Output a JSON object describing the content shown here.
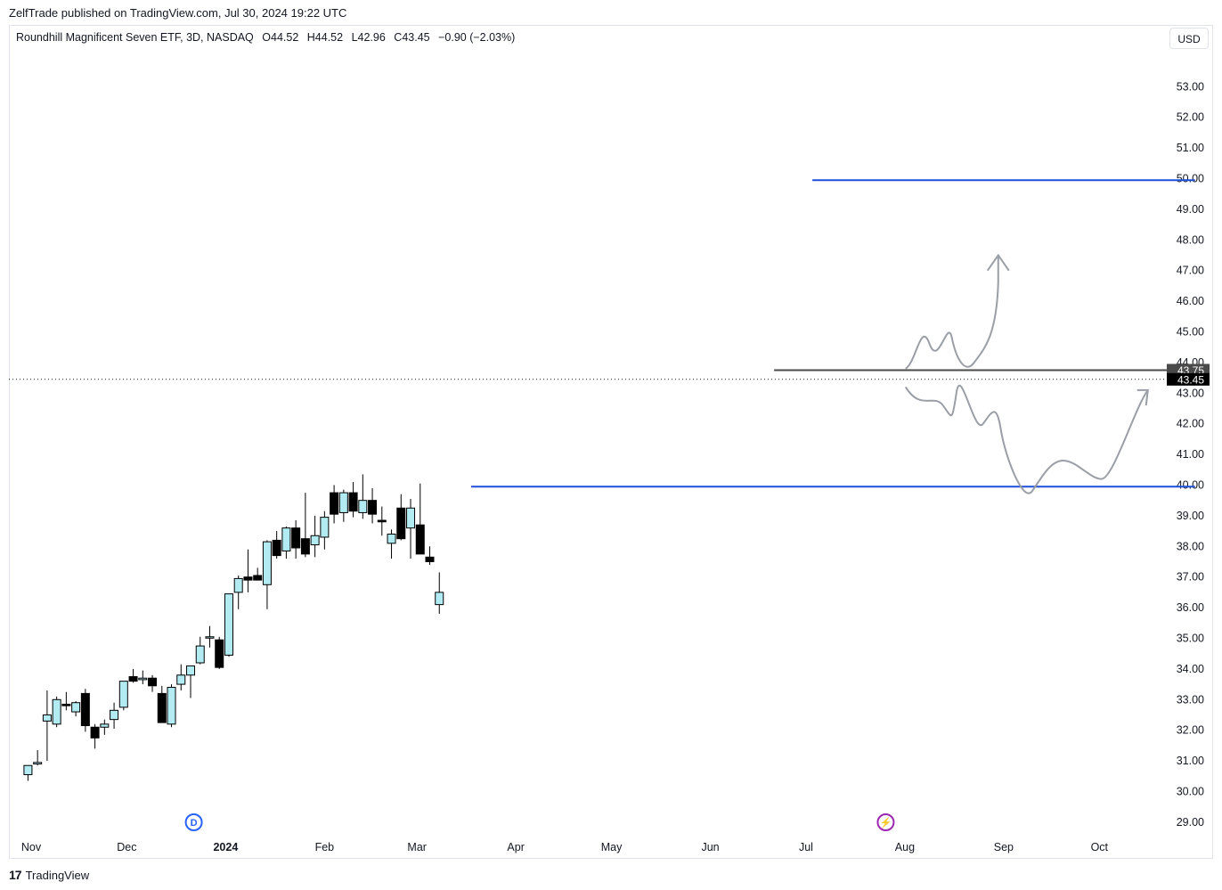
{
  "header": {
    "published_line": "ZelfTrade published on TradingView.com, Jul 30, 2024 19:22 UTC"
  },
  "legend": {
    "symbol": "Roundhill Magnificent Seven ETF, 3D, NASDAQ",
    "open": "O44.52",
    "high": "H44.52",
    "low": "L42.96",
    "close": "C43.45",
    "change": "−0.90 (−2.03%)"
  },
  "currency_button": "USD",
  "footer": {
    "brand": "TradingView",
    "logo_glyph": "17"
  },
  "colors": {
    "up_body": "#b2ebf2",
    "down_body": "#000000",
    "wick": "#000000",
    "level_line": "#1e4fd8",
    "support_line": "#4a4a4a",
    "drawing": "#9a9ea6",
    "dividend_marker": "#2962ff",
    "earnings_marker": "#9c27b0"
  },
  "chart_data": {
    "type": "candlestick",
    "title": "",
    "xlabel": "",
    "ylabel": "",
    "ylim": [
      28.6,
      54.2
    ],
    "yticks": [
      29,
      30,
      31,
      32,
      33,
      34,
      35,
      36,
      37,
      38,
      39,
      40,
      41,
      42,
      43,
      44,
      45,
      46,
      47,
      48,
      49,
      50,
      51,
      52,
      53
    ],
    "ytick_labels": [
      "29.00",
      "30.00",
      "31.00",
      "32.00",
      "33.00",
      "34.00",
      "35.00",
      "36.00",
      "37.00",
      "38.00",
      "39.00",
      "40.00",
      "41.00",
      "42.00",
      "43.00",
      "44.00",
      "45.00",
      "46.00",
      "47.00",
      "48.00",
      "49.00",
      "50.00",
      "51.00",
      "52.00",
      "53.00"
    ],
    "hidden_ytick_labels": [
      "44.00"
    ],
    "x_start": "2023-11-01",
    "x_end": "2024-10-31",
    "month_labels": [
      {
        "date": "2023-11-01",
        "label": "Nov",
        "bold": false
      },
      {
        "date": "2023-12-01",
        "label": "Dec",
        "bold": false
      },
      {
        "date": "2024-01-01",
        "label": "2024",
        "bold": true
      },
      {
        "date": "2024-02-01",
        "label": "Feb",
        "bold": false
      },
      {
        "date": "2024-03-01",
        "label": "Mar",
        "bold": false
      },
      {
        "date": "2024-04-01",
        "label": "Apr",
        "bold": false
      },
      {
        "date": "2024-05-01",
        "label": "May",
        "bold": false
      },
      {
        "date": "2024-06-01",
        "label": "Jun",
        "bold": false
      },
      {
        "date": "2024-07-01",
        "label": "Jul",
        "bold": false
      },
      {
        "date": "2024-08-01",
        "label": "Aug",
        "bold": false
      },
      {
        "date": "2024-09-01",
        "label": "Sep",
        "bold": false
      },
      {
        "date": "2024-10-01",
        "label": "Oct",
        "bold": false
      }
    ],
    "candles": [
      {
        "date": "2023-10-31",
        "o": 30.55,
        "h": 30.85,
        "l": 30.35,
        "c": 30.85
      },
      {
        "date": "2023-11-03",
        "o": 30.9,
        "h": 31.35,
        "l": 30.85,
        "c": 30.95
      },
      {
        "date": "2023-11-06",
        "o": 32.3,
        "h": 33.3,
        "l": 31.0,
        "c": 32.5
      },
      {
        "date": "2023-11-09",
        "o": 32.2,
        "h": 33.1,
        "l": 32.1,
        "c": 33.0
      },
      {
        "date": "2023-11-12",
        "o": 32.85,
        "h": 33.25,
        "l": 32.65,
        "c": 32.8
      },
      {
        "date": "2023-11-15",
        "o": 32.6,
        "h": 32.95,
        "l": 32.45,
        "c": 32.9
      },
      {
        "date": "2023-11-18",
        "o": 33.2,
        "h": 33.35,
        "l": 31.95,
        "c": 32.15
      },
      {
        "date": "2023-11-21",
        "o": 32.1,
        "h": 32.2,
        "l": 31.4,
        "c": 31.75
      },
      {
        "date": "2023-11-24",
        "o": 32.1,
        "h": 32.35,
        "l": 31.85,
        "c": 32.2
      },
      {
        "date": "2023-11-27",
        "o": 32.35,
        "h": 32.9,
        "l": 32.05,
        "c": 32.65
      },
      {
        "date": "2023-11-30",
        "o": 32.75,
        "h": 33.6,
        "l": 32.65,
        "c": 33.6
      },
      {
        "date": "2023-12-03",
        "o": 33.75,
        "h": 34.0,
        "l": 33.55,
        "c": 33.6
      },
      {
        "date": "2023-12-06",
        "o": 33.65,
        "h": 33.95,
        "l": 33.5,
        "c": 33.7
      },
      {
        "date": "2023-12-09",
        "o": 33.7,
        "h": 33.8,
        "l": 33.25,
        "c": 33.45
      },
      {
        "date": "2023-12-12",
        "o": 33.2,
        "h": 33.45,
        "l": 32.25,
        "c": 32.25
      },
      {
        "date": "2023-12-15",
        "o": 32.2,
        "h": 33.5,
        "l": 32.1,
        "c": 33.4
      },
      {
        "date": "2023-12-18",
        "o": 33.5,
        "h": 34.15,
        "l": 33.3,
        "c": 33.8
      },
      {
        "date": "2023-12-21",
        "o": 33.8,
        "h": 34.1,
        "l": 33.05,
        "c": 34.1
      },
      {
        "date": "2023-12-24",
        "o": 34.2,
        "h": 35.05,
        "l": 34.15,
        "c": 34.75
      },
      {
        "date": "2023-12-27",
        "o": 35.05,
        "h": 35.4,
        "l": 34.7,
        "c": 35.05
      },
      {
        "date": "2023-12-30",
        "o": 34.95,
        "h": 35.05,
        "l": 34.0,
        "c": 34.05
      },
      {
        "date": "2024-01-02",
        "o": 34.45,
        "h": 36.45,
        "l": 34.4,
        "c": 36.45
      },
      {
        "date": "2024-01-05",
        "o": 36.5,
        "h": 37.05,
        "l": 35.95,
        "c": 36.95
      },
      {
        "date": "2024-01-08",
        "o": 37.0,
        "h": 37.9,
        "l": 36.5,
        "c": 36.9
      },
      {
        "date": "2024-01-11",
        "o": 37.05,
        "h": 37.3,
        "l": 36.95,
        "c": 36.9
      },
      {
        "date": "2024-01-14",
        "o": 36.75,
        "h": 38.2,
        "l": 35.95,
        "c": 38.15
      },
      {
        "date": "2024-01-17",
        "o": 38.2,
        "h": 38.5,
        "l": 37.6,
        "c": 37.7
      },
      {
        "date": "2024-01-20",
        "o": 37.85,
        "h": 38.65,
        "l": 37.6,
        "c": 38.6
      },
      {
        "date": "2024-01-23",
        "o": 38.6,
        "h": 38.85,
        "l": 37.6,
        "c": 37.95
      },
      {
        "date": "2024-01-26",
        "o": 38.25,
        "h": 39.75,
        "l": 37.65,
        "c": 37.75
      },
      {
        "date": "2024-01-29",
        "o": 38.05,
        "h": 39.0,
        "l": 37.65,
        "c": 38.35
      },
      {
        "date": "2024-02-01",
        "o": 38.3,
        "h": 39.15,
        "l": 37.9,
        "c": 38.95
      },
      {
        "date": "2024-02-04",
        "o": 39.75,
        "h": 40.0,
        "l": 38.75,
        "c": 39.05
      },
      {
        "date": "2024-02-07",
        "o": 39.1,
        "h": 39.85,
        "l": 38.8,
        "c": 39.75
      },
      {
        "date": "2024-02-10",
        "o": 39.75,
        "h": 40.1,
        "l": 38.95,
        "c": 39.15
      },
      {
        "date": "2024-02-13",
        "o": 39.1,
        "h": 40.35,
        "l": 38.9,
        "c": 39.5
      },
      {
        "date": "2024-02-16",
        "o": 39.5,
        "h": 39.9,
        "l": 38.75,
        "c": 39.05
      },
      {
        "date": "2024-02-19",
        "o": 38.85,
        "h": 39.3,
        "l": 38.35,
        "c": 38.8
      },
      {
        "date": "2024-02-22",
        "o": 38.1,
        "h": 38.55,
        "l": 37.6,
        "c": 38.4
      },
      {
        "date": "2024-02-25",
        "o": 39.25,
        "h": 39.7,
        "l": 38.2,
        "c": 38.25
      },
      {
        "date": "2024-02-28",
        "o": 38.6,
        "h": 39.55,
        "l": 37.6,
        "c": 39.25
      },
      {
        "date": "2024-03-02",
        "o": 38.7,
        "h": 40.05,
        "l": 37.75,
        "c": 37.75
      },
      {
        "date": "2024-03-05",
        "o": 37.65,
        "h": 38.0,
        "l": 37.4,
        "c": 37.5
      },
      {
        "date": "2024-03-08",
        "o": 36.1,
        "h": 37.15,
        "l": 35.8,
        "c": 36.5
      }
    ],
    "horizontal_levels": [
      {
        "name": "resistance",
        "value": 49.95,
        "from": "2024-07-03",
        "to": "2024-10-31"
      },
      {
        "name": "support",
        "value": 39.95,
        "from": "2024-03-18",
        "to": "2024-10-31"
      },
      {
        "name": "pivot",
        "value": 43.75,
        "from": "2024-06-21",
        "to": "2024-10-31"
      }
    ],
    "price_labels": [
      {
        "value": 43.75,
        "label": "43.75",
        "bg": "#4a4a4a"
      },
      {
        "value": 43.45,
        "label": "43.45",
        "bg": "#000000"
      }
    ],
    "last_close": 43.45,
    "events": [
      {
        "type": "dividend",
        "date": "2023-12-22",
        "label": "D"
      },
      {
        "type": "earnings",
        "date": "2024-07-26",
        "label": "⚡"
      }
    ]
  }
}
